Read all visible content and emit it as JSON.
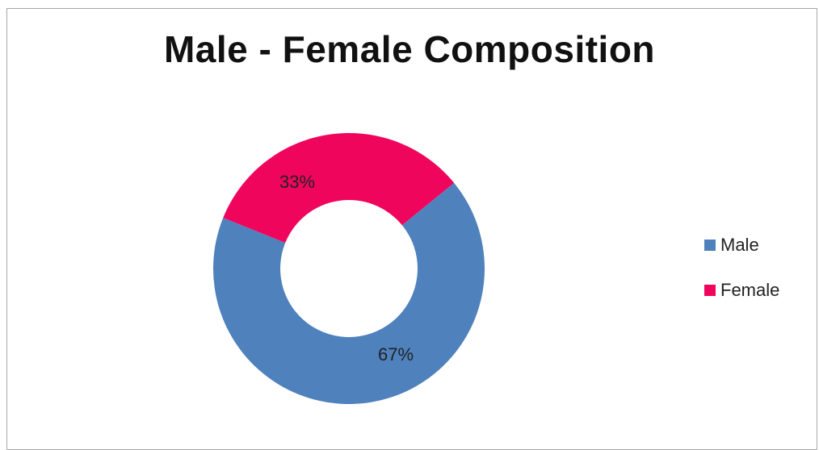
{
  "chart_data": {
    "type": "pie",
    "title": "Male - Female Composition",
    "series": [
      {
        "name": "Male",
        "value": 67,
        "label": "67%",
        "color": "#4f81bd"
      },
      {
        "name": "Female",
        "value": 33,
        "label": "33%",
        "color": "#f0055d"
      }
    ],
    "donut": true,
    "legend_position": "right"
  }
}
